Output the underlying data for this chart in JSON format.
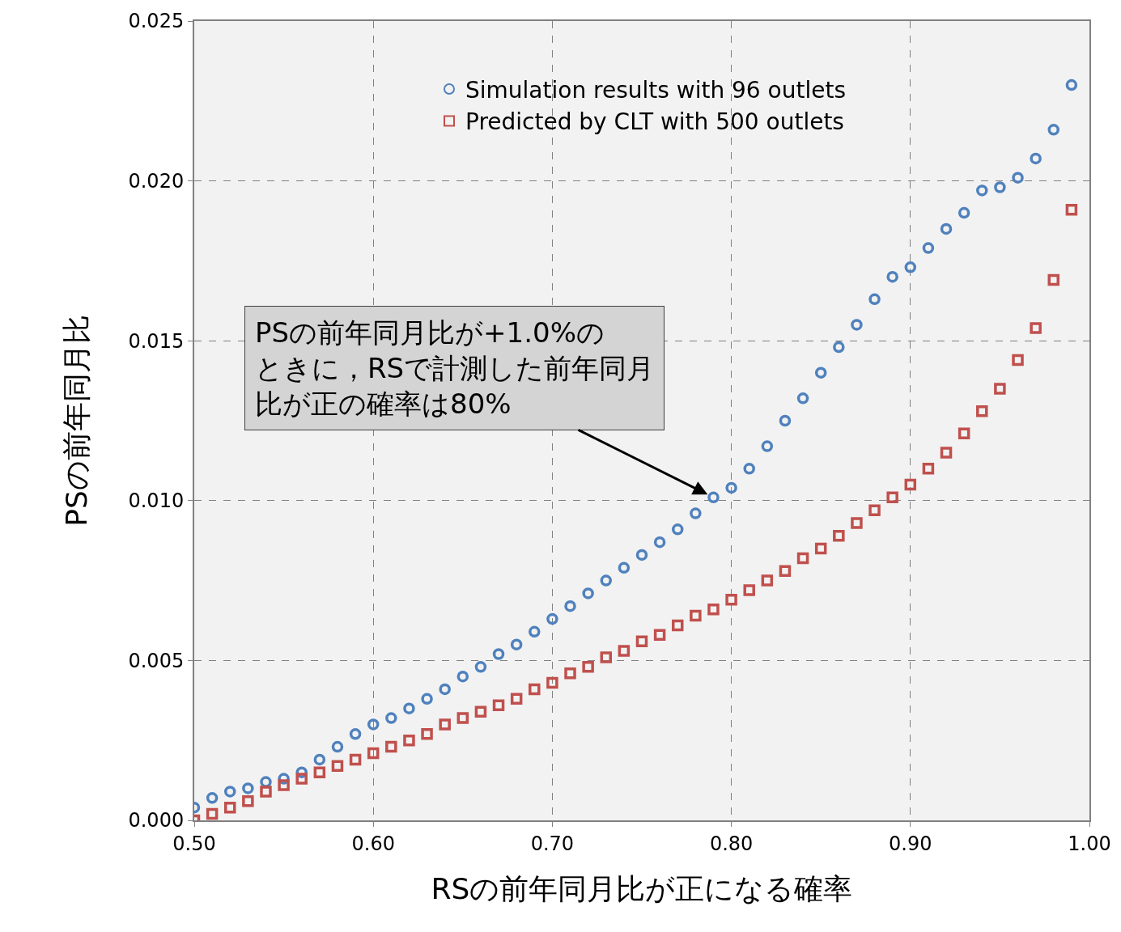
{
  "chart_data": {
    "type": "scatter",
    "xlabel": "RSの前年同月比が正になる確率",
    "ylabel": "PSの前年同月比",
    "x": [
      0.5,
      0.51,
      0.52,
      0.53,
      0.54,
      0.55,
      0.56,
      0.57,
      0.58,
      0.59,
      0.6,
      0.61,
      0.62,
      0.63,
      0.64,
      0.65,
      0.66,
      0.67,
      0.68,
      0.69,
      0.7,
      0.71,
      0.72,
      0.73,
      0.74,
      0.75,
      0.76,
      0.77,
      0.78,
      0.79,
      0.8,
      0.81,
      0.82,
      0.83,
      0.84,
      0.85,
      0.86,
      0.87,
      0.88,
      0.89,
      0.9,
      0.91,
      0.92,
      0.93,
      0.94,
      0.95,
      0.96,
      0.97,
      0.98,
      0.99
    ],
    "series": [
      {
        "name": "Simulation results with 96 outlets",
        "color": "#4f81bd",
        "marker": "circle",
        "values": [
          0.0004,
          0.0007,
          0.0009,
          0.001,
          0.0012,
          0.0013,
          0.0015,
          0.0019,
          0.0023,
          0.0027,
          0.003,
          0.0032,
          0.0035,
          0.0038,
          0.0041,
          0.0045,
          0.0048,
          0.0052,
          0.0055,
          0.0059,
          0.0063,
          0.0067,
          0.0071,
          0.0075,
          0.0079,
          0.0083,
          0.0087,
          0.0091,
          0.0096,
          0.0101,
          0.0104,
          0.011,
          0.0117,
          0.0125,
          0.0132,
          0.014,
          0.0148,
          0.0155,
          0.0163,
          0.017,
          0.0173,
          0.0179,
          0.0185,
          0.019,
          0.0197,
          0.0198,
          0.0201,
          0.0207,
          0.0216,
          0.023
        ]
      },
      {
        "name": "Predicted by CLT with 500 outlets",
        "color": "#c0504d",
        "marker": "square",
        "values": [
          0.0,
          0.0002,
          0.0004,
          0.0006,
          0.0009,
          0.0011,
          0.0013,
          0.0015,
          0.0017,
          0.0019,
          0.0021,
          0.0023,
          0.0025,
          0.0027,
          0.003,
          0.0032,
          0.0034,
          0.0036,
          0.0038,
          0.0041,
          0.0043,
          0.0046,
          0.0048,
          0.0051,
          0.0053,
          0.0056,
          0.0058,
          0.0061,
          0.0064,
          0.0066,
          0.0069,
          0.0072,
          0.0075,
          0.0078,
          0.0082,
          0.0085,
          0.0089,
          0.0093,
          0.0097,
          0.0101,
          0.0105,
          0.011,
          0.0115,
          0.0121,
          0.0128,
          0.0135,
          0.0144,
          0.0154,
          0.0169,
          0.0191
        ]
      }
    ],
    "xlim": [
      0.5,
      1.0
    ],
    "xticks": [
      {
        "value": 0.5,
        "label": "0.50"
      },
      {
        "value": 0.6,
        "label": "0.60"
      },
      {
        "value": 0.7,
        "label": "0.70"
      },
      {
        "value": 0.8,
        "label": "0.80"
      },
      {
        "value": 0.9,
        "label": "0.90"
      },
      {
        "value": 1.0,
        "label": "1.00"
      }
    ],
    "ylim": [
      0,
      0.025
    ],
    "yticks": [
      {
        "value": 0,
        "label": "0.000"
      },
      {
        "value": 0.005,
        "label": "0.005"
      },
      {
        "value": 0.01,
        "label": "0.010"
      },
      {
        "value": 0.015,
        "label": "0.015"
      },
      {
        "value": 0.02,
        "label": "0.020"
      },
      {
        "value": 0.025,
        "label": "0.025"
      }
    ],
    "grid": true,
    "legend": "top",
    "annotations": [
      {
        "text": "PSの前年同月比が+1.0%のときに，RSで計測した前年同月比が正の確率は80%",
        "x": 0.79,
        "y": 0.0101
      }
    ]
  }
}
